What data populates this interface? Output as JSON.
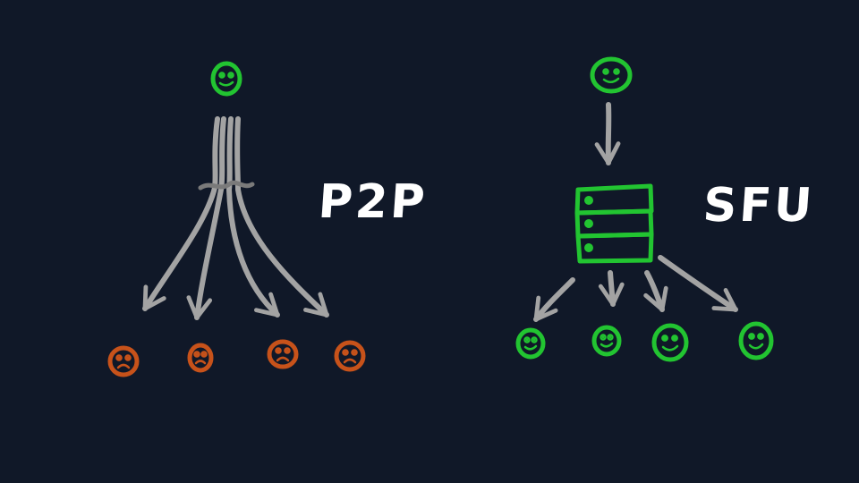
{
  "colors": {
    "background": "#101828",
    "arrow": "#a3a3a3",
    "happy": "#22c431",
    "sad": "#c7521a",
    "text": "#ffffff"
  },
  "p2p": {
    "label": "P2P",
    "sender": {
      "mood": "happy",
      "icon": "smiley-face-icon"
    },
    "receivers": [
      {
        "mood": "sad",
        "icon": "sad-face-icon"
      },
      {
        "mood": "sad",
        "icon": "sad-face-icon"
      },
      {
        "mood": "sad",
        "icon": "sad-face-icon"
      },
      {
        "mood": "sad",
        "icon": "sad-face-icon"
      }
    ],
    "streams": 4
  },
  "sfu": {
    "label": "SFU",
    "sender": {
      "mood": "happy",
      "icon": "smiley-face-icon"
    },
    "server": {
      "icon": "server-stack-icon"
    },
    "receivers": [
      {
        "mood": "happy",
        "icon": "smiley-face-icon"
      },
      {
        "mood": "happy",
        "icon": "smiley-face-icon"
      },
      {
        "mood": "happy",
        "icon": "smiley-face-icon"
      },
      {
        "mood": "happy",
        "icon": "smiley-face-icon"
      }
    ]
  }
}
